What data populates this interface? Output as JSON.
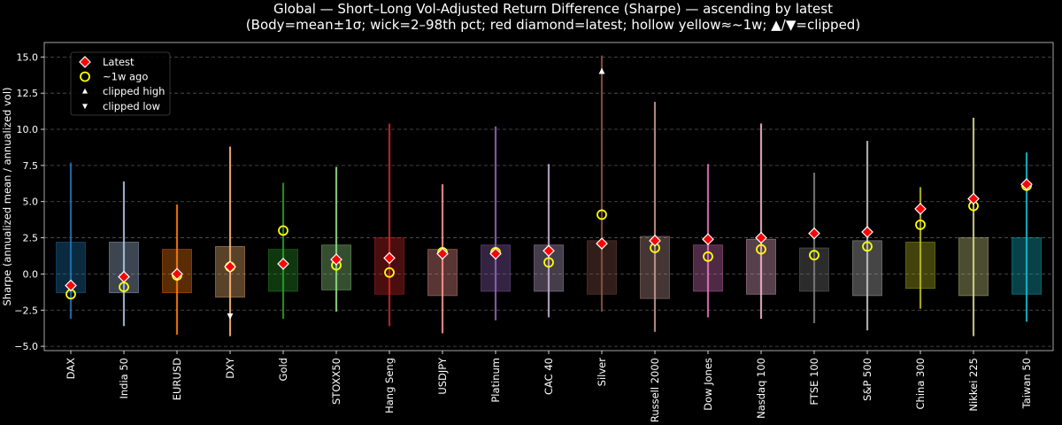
{
  "chart_data": {
    "type": "candlestick-box",
    "title": "Global — Short–Long Vol-Adjusted Return Difference (Sharpe) — ascending by latest",
    "subtitle": "(Body=mean±1σ; wick=2–98th pct; red diamond=latest; hollow yellow≈~1w; ▲/▼=clipped)",
    "xlabel": "",
    "ylabel": "Sharpe (annualized mean / annualized vol)",
    "ylim": [
      -5.3,
      16.0
    ],
    "yticks": [
      -5.0,
      -2.5,
      0.0,
      2.5,
      5.0,
      7.5,
      10.0,
      12.5,
      15.0
    ],
    "ytick_labels": [
      "−5.0",
      "−2.5",
      "0.0",
      "2.5",
      "5.0",
      "7.5",
      "10.0",
      "12.5",
      "15.0"
    ],
    "grid": "horizontal dashed",
    "legend_position": "top-left",
    "legend": [
      {
        "label": "Latest",
        "marker": "red-diamond"
      },
      {
        "label": "~1w ago",
        "marker": "hollow-yellow-circle"
      },
      {
        "label": "clipped high",
        "marker": "white-triangle-up"
      },
      {
        "label": "clipped low",
        "marker": "white-triangle-down"
      }
    ],
    "colors": {
      "latest": "#ff0000",
      "week_ago": "#ffff00",
      "grid": "#555555",
      "background": "#000000"
    },
    "categories": [
      "DAX",
      "India 50",
      "EURUSD",
      "DXY",
      "Gold",
      "STOXX50",
      "Hang Seng",
      "USDJPY",
      "Platinum",
      "CAC 40",
      "Silver",
      "Russell 2000",
      "Dow Jones",
      "Nasdaq 100",
      "FTSE 100",
      "S&P 500",
      "China 300",
      "Nikkei 225",
      "Taiwan 50"
    ],
    "series": [
      {
        "category": "DAX",
        "color": "#1f77b4",
        "body_low": -1.3,
        "body_high": 2.2,
        "wick_low": -3.1,
        "wick_high": 7.7,
        "latest": -0.8,
        "week_ago": -1.4,
        "clipped": ""
      },
      {
        "category": "India 50",
        "color": "#aec7e8",
        "body_low": -1.3,
        "body_high": 2.2,
        "wick_low": -3.6,
        "wick_high": 6.4,
        "latest": -0.2,
        "week_ago": -0.9,
        "clipped": ""
      },
      {
        "category": "EURUSD",
        "color": "#ff7f0e",
        "body_low": -1.3,
        "body_high": 1.7,
        "wick_low": -4.2,
        "wick_high": 4.8,
        "latest": 0.0,
        "week_ago": -0.1,
        "clipped": ""
      },
      {
        "category": "DXY",
        "color": "#ffbb78",
        "body_low": -1.6,
        "body_high": 1.9,
        "wick_low": -4.3,
        "wick_high": 8.8,
        "latest": 0.5,
        "week_ago": 0.5,
        "clipped": "low",
        "clip_value": -2.9
      },
      {
        "category": "Gold",
        "color": "#2ca02c",
        "body_low": -1.2,
        "body_high": 1.7,
        "wick_low": -3.1,
        "wick_high": 6.3,
        "latest": 0.7,
        "week_ago": 3.0,
        "clipped": ""
      },
      {
        "category": "STOXX50",
        "color": "#98df8a",
        "body_low": -1.1,
        "body_high": 2.0,
        "wick_low": -2.6,
        "wick_high": 7.4,
        "latest": 1.0,
        "week_ago": 0.6,
        "clipped": ""
      },
      {
        "category": "Hang Seng",
        "color": "#d62728",
        "body_low": -1.4,
        "body_high": 2.5,
        "wick_low": -3.6,
        "wick_high": 10.4,
        "latest": 1.1,
        "week_ago": 0.1,
        "clipped": ""
      },
      {
        "category": "USDJPY",
        "color": "#ff9896",
        "body_low": -1.5,
        "body_high": 1.7,
        "wick_low": -4.1,
        "wick_high": 6.2,
        "latest": 1.4,
        "week_ago": 1.5,
        "clipped": ""
      },
      {
        "category": "Platinum",
        "color": "#9467bd",
        "body_low": -1.2,
        "body_high": 2.0,
        "wick_low": -3.2,
        "wick_high": 10.2,
        "latest": 1.4,
        "week_ago": 1.5,
        "clipped": ""
      },
      {
        "category": "CAC 40",
        "color": "#c5b0d5",
        "body_low": -1.2,
        "body_high": 2.0,
        "wick_low": -3.0,
        "wick_high": 7.6,
        "latest": 1.6,
        "week_ago": 0.8,
        "clipped": ""
      },
      {
        "category": "Silver",
        "color": "#8c564b",
        "body_low": -1.4,
        "body_high": 2.3,
        "wick_low": -2.6,
        "wick_high": 15.1,
        "latest": 2.1,
        "week_ago": 4.1,
        "clipped": "high",
        "clip_value": 14.0
      },
      {
        "category": "Russell 2000",
        "color": "#c49c94",
        "body_low": -1.7,
        "body_high": 2.6,
        "wick_low": -4.0,
        "wick_high": 11.9,
        "latest": 2.3,
        "week_ago": 1.8,
        "clipped": ""
      },
      {
        "category": "Dow Jones",
        "color": "#e377c2",
        "body_low": -1.2,
        "body_high": 2.0,
        "wick_low": -3.0,
        "wick_high": 7.6,
        "latest": 2.4,
        "week_ago": 1.2,
        "clipped": ""
      },
      {
        "category": "Nasdaq 100",
        "color": "#f7b6d2",
        "body_low": -1.4,
        "body_high": 2.4,
        "wick_low": -3.1,
        "wick_high": 10.4,
        "latest": 2.5,
        "week_ago": 1.7,
        "clipped": ""
      },
      {
        "category": "FTSE 100",
        "color": "#7f7f7f",
        "body_low": -1.2,
        "body_high": 1.8,
        "wick_low": -3.4,
        "wick_high": 7.0,
        "latest": 2.8,
        "week_ago": 1.3,
        "clipped": ""
      },
      {
        "category": "S&P 500",
        "color": "#c7c7c7",
        "body_low": -1.5,
        "body_high": 2.3,
        "wick_low": -3.9,
        "wick_high": 9.2,
        "latest": 2.9,
        "week_ago": 1.9,
        "clipped": ""
      },
      {
        "category": "China 300",
        "color": "#bcbd22",
        "body_low": -1.0,
        "body_high": 2.2,
        "wick_low": -2.4,
        "wick_high": 6.0,
        "latest": 4.5,
        "week_ago": 3.4,
        "clipped": ""
      },
      {
        "category": "Nikkei 225",
        "color": "#dbdb8d",
        "body_low": -1.5,
        "body_high": 2.5,
        "wick_low": -4.3,
        "wick_high": 10.8,
        "latest": 5.2,
        "week_ago": 4.7,
        "clipped": ""
      },
      {
        "category": "Taiwan 50",
        "color": "#17becf",
        "body_low": -1.4,
        "body_high": 2.5,
        "wick_low": -3.3,
        "wick_high": 8.4,
        "latest": 6.2,
        "week_ago": 6.1,
        "clipped": ""
      }
    ]
  }
}
